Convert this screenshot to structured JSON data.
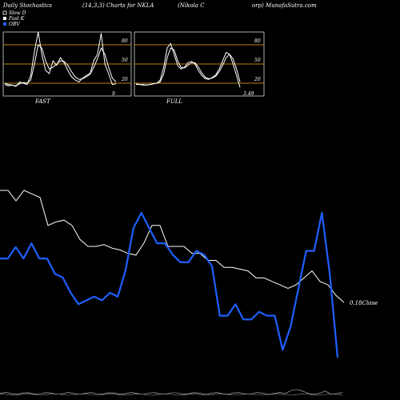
{
  "header": {
    "left": "Daily Stochastics",
    "mid": "(14,3,3) Charts for NKLA",
    "right_a": "(Nikola  C",
    "right_b": "orp) MunafaSutra.com"
  },
  "legend": {
    "items": [
      {
        "label": "Slow  D",
        "color": "#ffffff",
        "swatch": "outline"
      },
      {
        "label": "Fast K",
        "color": "#ffffff",
        "swatch": "fill"
      },
      {
        "label": "OBV",
        "color": "#1f5fff",
        "swatch": "fill"
      }
    ]
  },
  "panels": {
    "fast": {
      "label": "FAST",
      "value": "9",
      "ticks": [
        "80",
        "50",
        "20"
      ]
    },
    "full": {
      "label": "FULL",
      "value": "3.49",
      "ticks": [
        "80",
        "50",
        "20"
      ]
    }
  },
  "close_label": "0.18Close",
  "colors": {
    "price": "#ffffff",
    "obv": "#1f5fff",
    "band": "#b8860b",
    "bg": "#000000"
  },
  "chart_data": [
    {
      "type": "line",
      "title": "FAST",
      "ylim": [
        0,
        100
      ],
      "hlines": [
        20,
        50,
        80
      ],
      "series": [
        {
          "values": [
            8,
            6,
            7,
            5,
            12,
            10,
            8,
            22,
            60,
            90,
            55,
            30,
            25,
            45,
            38,
            50,
            42,
            30,
            20,
            15,
            12,
            18,
            22,
            25,
            45,
            55,
            88,
            40,
            25,
            8,
            9
          ]
        },
        {
          "values": [
            10,
            8,
            7,
            6,
            9,
            11,
            10,
            15,
            40,
            70,
            65,
            45,
            32,
            35,
            40,
            45,
            44,
            38,
            28,
            20,
            16,
            17,
            20,
            24,
            35,
            48,
            65,
            55,
            35,
            18,
            12
          ]
        }
      ]
    },
    {
      "type": "line",
      "title": "FULL",
      "ylim": [
        0,
        100
      ],
      "hlines": [
        20,
        50,
        80
      ],
      "series": [
        {
          "values": [
            8,
            8,
            7,
            7,
            8,
            9,
            10,
            15,
            35,
            65,
            72,
            55,
            38,
            32,
            35,
            42,
            44,
            40,
            30,
            22,
            17,
            16,
            19,
            23,
            32,
            45,
            58,
            55,
            40,
            22,
            3.49
          ]
        },
        {
          "values": [
            9,
            8,
            8,
            7,
            8,
            9,
            10,
            12,
            25,
            50,
            65,
            62,
            45,
            35,
            34,
            38,
            42,
            42,
            35,
            26,
            19,
            17,
            18,
            21,
            28,
            38,
            50,
            55,
            48,
            32,
            12
          ]
        }
      ]
    },
    {
      "type": "line",
      "x": [
        0,
        1,
        2,
        3,
        4,
        5,
        6,
        7,
        8,
        9,
        10,
        11,
        12,
        13,
        14,
        15,
        16,
        17,
        18,
        19,
        20,
        21,
        22,
        23,
        24,
        25,
        26,
        27,
        28,
        29,
        30,
        31,
        32,
        33,
        34,
        35,
        36,
        37,
        38,
        39,
        40,
        41,
        42,
        43
      ],
      "series": [
        {
          "name": "Close",
          "color": "#ffffff",
          "values": [
            0.5,
            0.5,
            0.47,
            0.5,
            0.49,
            0.48,
            0.4,
            0.41,
            0.415,
            0.4,
            0.36,
            0.34,
            0.34,
            0.345,
            0.335,
            0.33,
            0.32,
            0.315,
            0.35,
            0.4,
            0.4,
            0.34,
            0.34,
            0.34,
            0.32,
            0.32,
            0.3,
            0.3,
            0.28,
            0.28,
            0.275,
            0.27,
            0.25,
            0.25,
            0.24,
            0.23,
            0.22,
            0.23,
            0.25,
            0.27,
            0.24,
            0.23,
            0.2,
            0.18
          ]
        },
        {
          "name": "OBV",
          "color": "#1f5fff",
          "values": [
            30,
            30,
            33,
            30,
            34,
            30,
            30,
            26,
            25,
            21,
            18,
            19,
            20,
            19,
            21,
            20,
            27,
            38,
            42,
            38,
            34,
            34,
            31,
            29,
            29,
            32,
            31,
            28,
            15,
            15,
            18,
            14,
            14,
            16,
            15,
            15,
            6,
            12,
            22,
            32,
            32,
            42,
            26,
            4
          ]
        }
      ]
    }
  ]
}
